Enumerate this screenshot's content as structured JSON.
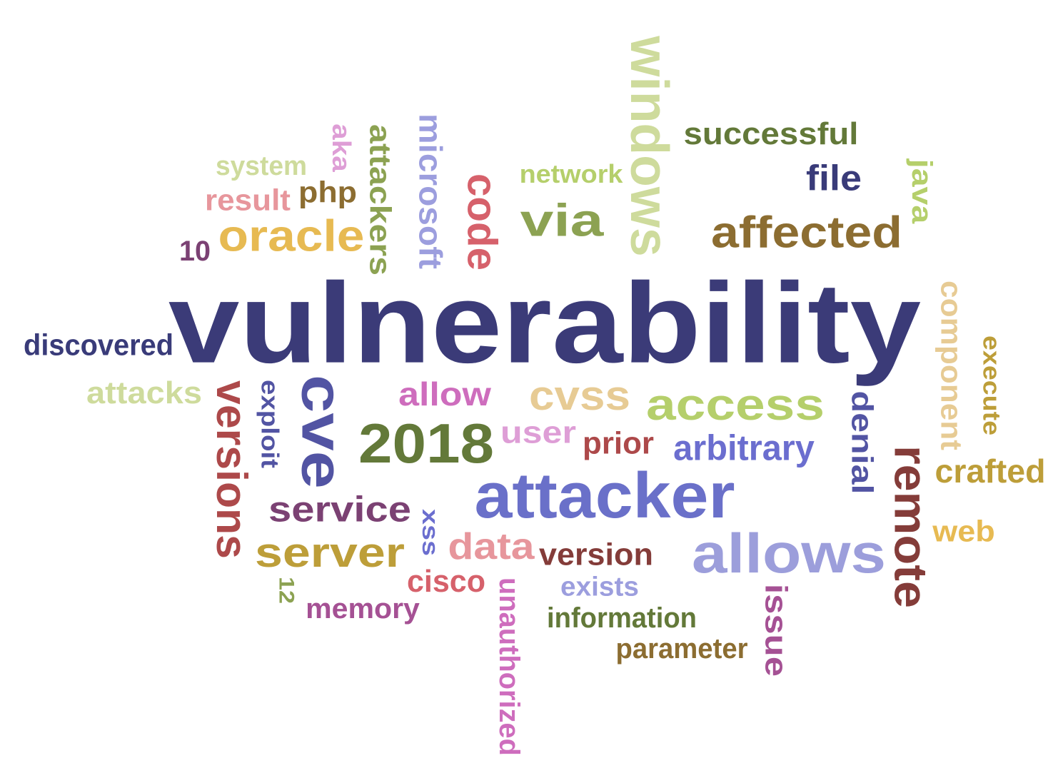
{
  "words": [
    {
      "text": "vulnerability",
      "color": "#3b3b78",
      "orientation": "horizontal"
    },
    {
      "text": "attacker",
      "color": "#6a70c9",
      "orientation": "horizontal"
    },
    {
      "text": "allows",
      "color": "#9c9edb",
      "orientation": "horizontal"
    },
    {
      "text": "2018",
      "color": "#637939",
      "orientation": "horizontal"
    },
    {
      "text": "access",
      "color": "#b5cf6b",
      "orientation": "horizontal"
    },
    {
      "text": "affected",
      "color": "#8c6d31",
      "orientation": "horizontal"
    },
    {
      "text": "via",
      "color": "#8ca252",
      "orientation": "horizontal"
    },
    {
      "text": "windows",
      "color": "#cedb9c",
      "orientation": "vertical-down"
    },
    {
      "text": "cve",
      "color": "#5254a3",
      "orientation": "vertical-down"
    },
    {
      "text": "remote",
      "color": "#843c39",
      "orientation": "vertical-down"
    },
    {
      "text": "versions",
      "color": "#ad494a",
      "orientation": "vertical-down"
    },
    {
      "text": "server",
      "color": "#bd9e39",
      "orientation": "horizontal"
    },
    {
      "text": "oracle",
      "color": "#e7ba52",
      "orientation": "horizontal"
    },
    {
      "text": "service",
      "color": "#7b4173",
      "orientation": "horizontal"
    },
    {
      "text": "data",
      "color": "#e7969c",
      "orientation": "horizontal"
    },
    {
      "text": "cvss",
      "color": "#e7cb94",
      "orientation": "horizontal"
    },
    {
      "text": "allow",
      "color": "#ce6dbd",
      "orientation": "horizontal"
    },
    {
      "text": "successful",
      "color": "#637939",
      "orientation": "horizontal"
    },
    {
      "text": "code",
      "color": "#d6616b",
      "orientation": "vertical-down"
    },
    {
      "text": "attackers",
      "color": "#8ca252",
      "orientation": "vertical-down"
    },
    {
      "text": "microsoft",
      "color": "#9c9ede",
      "orientation": "vertical-down"
    },
    {
      "text": "arbitrary",
      "color": "#6b6ecf",
      "orientation": "horizontal"
    },
    {
      "text": "denial",
      "color": "#5254a3",
      "orientation": "vertical-down"
    },
    {
      "text": "component",
      "color": "#e7cb94",
      "orientation": "vertical-down"
    },
    {
      "text": "discovered",
      "color": "#393b79",
      "orientation": "horizontal"
    },
    {
      "text": "attacks",
      "color": "#cedb9c",
      "orientation": "horizontal"
    },
    {
      "text": "version",
      "color": "#843c39",
      "orientation": "horizontal"
    },
    {
      "text": "crafted",
      "color": "#bd9e39",
      "orientation": "horizontal"
    },
    {
      "text": "issue",
      "color": "#a55194",
      "orientation": "vertical-down"
    },
    {
      "text": "file",
      "color": "#393b79",
      "orientation": "horizontal"
    },
    {
      "text": "user",
      "color": "#de9ed6",
      "orientation": "horizontal"
    },
    {
      "text": "prior",
      "color": "#ad494a",
      "orientation": "horizontal"
    },
    {
      "text": "information",
      "color": "#637939",
      "orientation": "horizontal"
    },
    {
      "text": "memory",
      "color": "#a55194",
      "orientation": "horizontal"
    },
    {
      "text": "cisco",
      "color": "#d6616b",
      "orientation": "horizontal"
    },
    {
      "text": "unauthorized",
      "color": "#ce6dbd",
      "orientation": "vertical-down"
    },
    {
      "text": "parameter",
      "color": "#8c6d31",
      "orientation": "horizontal"
    },
    {
      "text": "exists",
      "color": "#9c9ede",
      "orientation": "horizontal"
    },
    {
      "text": "network",
      "color": "#b5cf6b",
      "orientation": "horizontal"
    },
    {
      "text": "result",
      "color": "#e7969c",
      "orientation": "horizontal"
    },
    {
      "text": "php",
      "color": "#8c6d31",
      "orientation": "horizontal"
    },
    {
      "text": "system",
      "color": "#cedb9c",
      "orientation": "horizontal"
    },
    {
      "text": "java",
      "color": "#b5cf6b",
      "orientation": "vertical-down"
    },
    {
      "text": "execute",
      "color": "#bd9e39",
      "orientation": "vertical-down"
    },
    {
      "text": "web",
      "color": "#e7ba52",
      "orientation": "horizontal"
    },
    {
      "text": "exploit",
      "color": "#5254a3",
      "orientation": "vertical-down"
    },
    {
      "text": "aka",
      "color": "#de9ed6",
      "orientation": "vertical-down"
    },
    {
      "text": "10",
      "color": "#7b4173",
      "orientation": "horizontal"
    },
    {
      "text": "xss",
      "color": "#6b6ecf",
      "orientation": "vertical-down"
    },
    {
      "text": "12",
      "color": "#8ca252",
      "orientation": "vertical-down"
    }
  ]
}
